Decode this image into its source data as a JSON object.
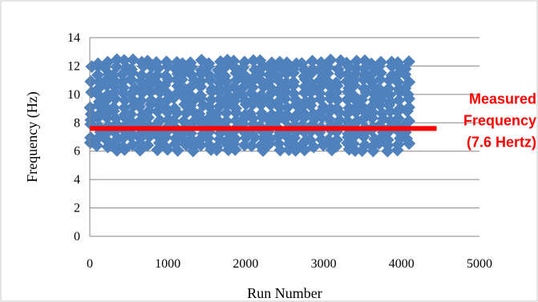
{
  "chart_data": {
    "type": "scatter",
    "title": "",
    "xlabel": "Run Number",
    "ylabel": "Frequency (Hz)",
    "xlim": [
      0,
      5000
    ],
    "ylim": [
      0,
      14
    ],
    "x_ticks": [
      0,
      1000,
      2000,
      3000,
      4000,
      5000
    ],
    "y_ticks": [
      0,
      2,
      4,
      6,
      8,
      10,
      12,
      14
    ],
    "grid": "horizontal",
    "legend": "none",
    "series": [
      {
        "marker": "diamond",
        "color": "#4f81bd",
        "x_range": [
          0,
          4100
        ],
        "y_range": [
          6.0,
          12.5
        ],
        "density": "dense"
      }
    ],
    "reference_line": {
      "y": 7.6,
      "x_range": [
        0,
        4450
      ],
      "color": "#ff0000"
    },
    "annotation": {
      "lines": [
        "Measured",
        "Frequency",
        "(7.6 Hertz)"
      ],
      "color": "#ff0000"
    }
  }
}
